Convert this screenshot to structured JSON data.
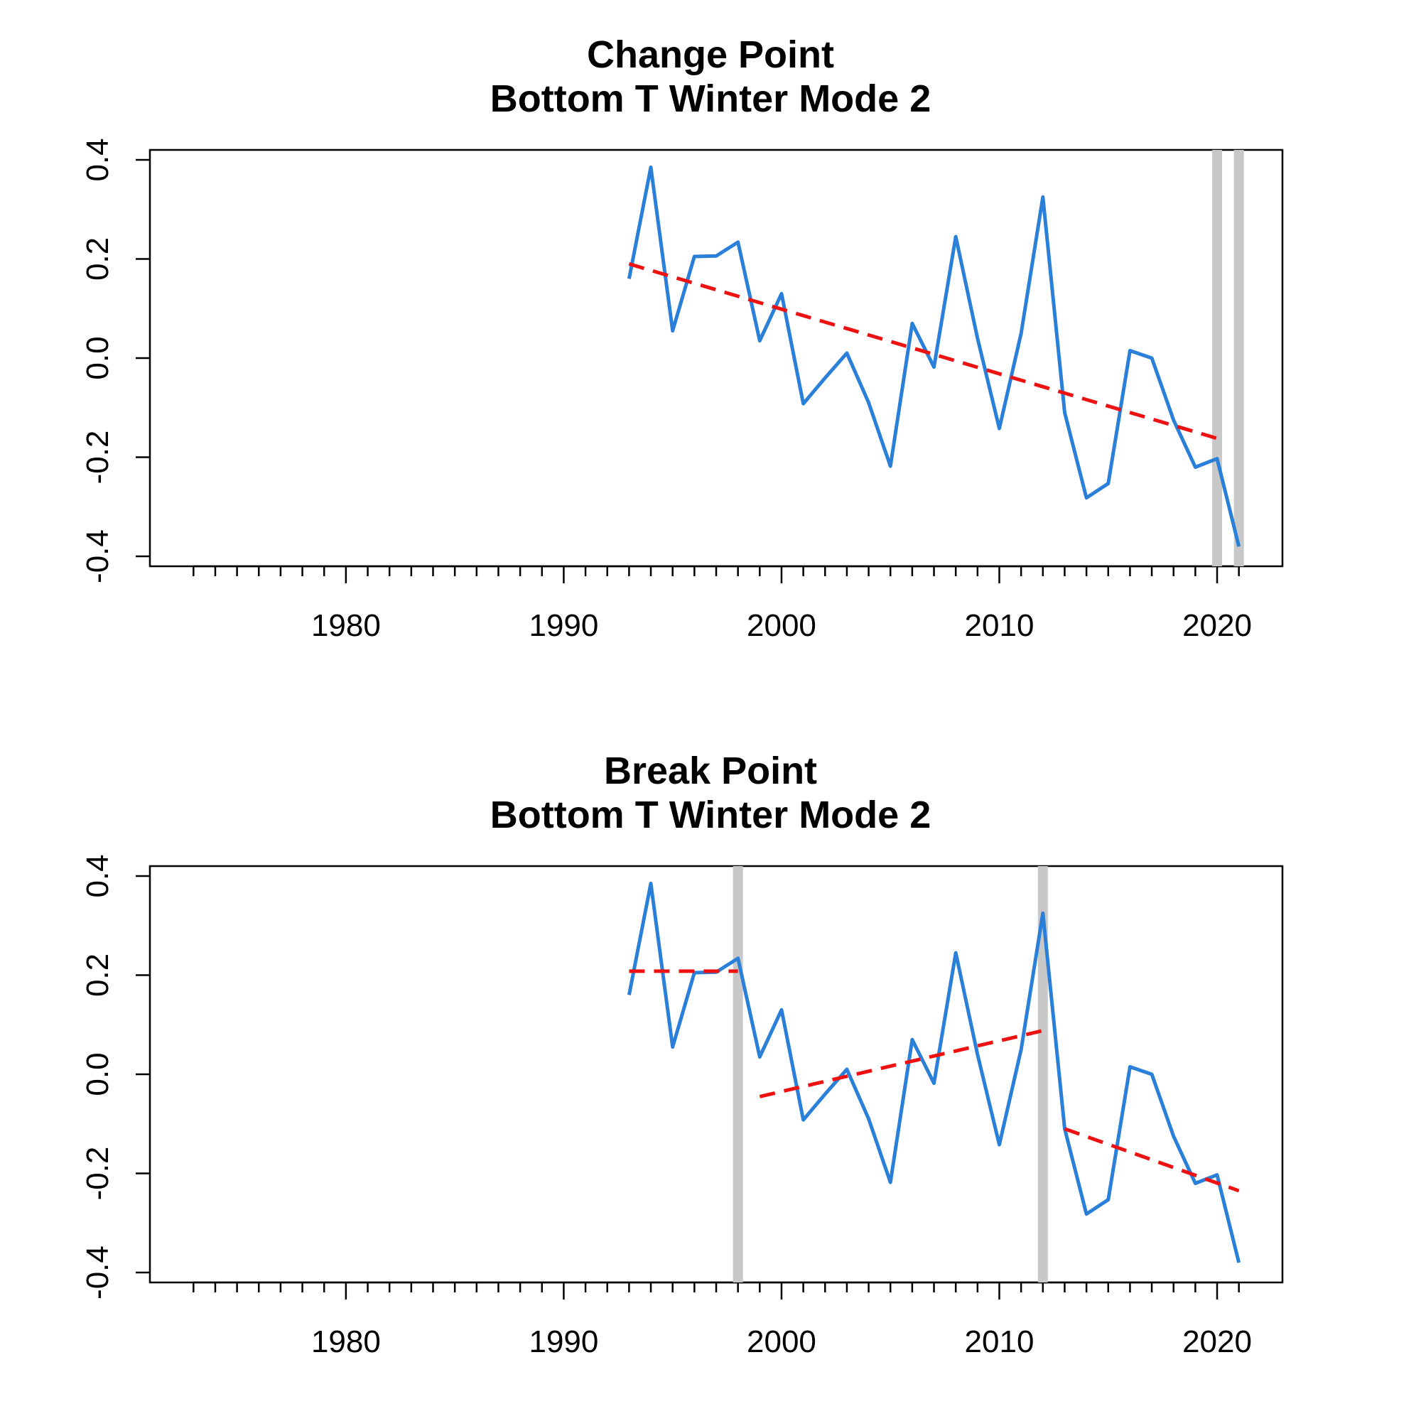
{
  "chart_data": [
    {
      "type": "line",
      "title": "Change Point",
      "subtitle": "Bottom T Winter Mode 2",
      "xlabel": "",
      "ylabel": "",
      "xlim": [
        1971,
        2023
      ],
      "ylim": [
        -0.42,
        0.42
      ],
      "x_major_ticks": [
        1980,
        1990,
        2000,
        2010,
        2020
      ],
      "y_ticks": [
        -0.4,
        -0.2,
        0.0,
        0.2,
        0.4
      ],
      "y_tick_labels": [
        "-0.4",
        "-0.2",
        "0.0",
        "0.2",
        "0.4"
      ],
      "grid": false,
      "colors": {
        "series": "#2a80d8",
        "trend": "#ee1111",
        "breaks": "#c8c8c8"
      },
      "series": [
        {
          "x": [
            1993,
            1994,
            1995,
            1996,
            1997,
            1998,
            1999,
            2000,
            2001,
            2002,
            2003,
            2004,
            2005,
            2006,
            2007,
            2008,
            2009,
            2010,
            2011,
            2012,
            2013,
            2014,
            2015,
            2016,
            2017,
            2018,
            2019,
            2020,
            2021
          ],
          "values": [
            0.16,
            0.385,
            0.055,
            0.205,
            0.206,
            0.234,
            0.035,
            0.13,
            -0.092,
            -0.04,
            0.01,
            -0.09,
            -0.218,
            0.07,
            -0.018,
            0.245,
            0.04,
            -0.142,
            0.05,
            0.325,
            -0.11,
            -0.282,
            -0.253,
            0.015,
            0.0,
            -0.125,
            -0.22,
            -0.203,
            -0.38
          ]
        }
      ],
      "trend_segments": [
        {
          "x": [
            1993,
            2020
          ],
          "y": [
            0.19,
            -0.162
          ]
        }
      ],
      "vertical_lines": [
        2020,
        2021
      ]
    },
    {
      "type": "line",
      "title": "Break Point",
      "subtitle": "Bottom T Winter Mode 2",
      "xlabel": "",
      "ylabel": "",
      "xlim": [
        1971,
        2023
      ],
      "ylim": [
        -0.42,
        0.42
      ],
      "x_major_ticks": [
        1980,
        1990,
        2000,
        2010,
        2020
      ],
      "y_ticks": [
        -0.4,
        -0.2,
        0.0,
        0.2,
        0.4
      ],
      "y_tick_labels": [
        "-0.4",
        "-0.2",
        "0.0",
        "0.2",
        "0.4"
      ],
      "grid": false,
      "colors": {
        "series": "#2a80d8",
        "trend": "#ee1111",
        "breaks": "#c8c8c8"
      },
      "series": [
        {
          "x": [
            1993,
            1994,
            1995,
            1996,
            1997,
            1998,
            1999,
            2000,
            2001,
            2002,
            2003,
            2004,
            2005,
            2006,
            2007,
            2008,
            2009,
            2010,
            2011,
            2012,
            2013,
            2014,
            2015,
            2016,
            2017,
            2018,
            2019,
            2020,
            2021
          ],
          "values": [
            0.16,
            0.385,
            0.055,
            0.205,
            0.206,
            0.234,
            0.035,
            0.13,
            -0.092,
            -0.04,
            0.01,
            -0.09,
            -0.218,
            0.07,
            -0.018,
            0.245,
            0.04,
            -0.142,
            0.05,
            0.325,
            -0.11,
            -0.282,
            -0.253,
            0.015,
            0.0,
            -0.125,
            -0.22,
            -0.203,
            -0.38
          ]
        }
      ],
      "trend_segments": [
        {
          "x": [
            1993,
            1998
          ],
          "y": [
            0.208,
            0.208
          ]
        },
        {
          "x": [
            1999,
            2012
          ],
          "y": [
            -0.045,
            0.088
          ]
        },
        {
          "x": [
            2013,
            2021
          ],
          "y": [
            -0.11,
            -0.235
          ]
        }
      ],
      "vertical_lines": [
        1998,
        2012
      ]
    }
  ]
}
